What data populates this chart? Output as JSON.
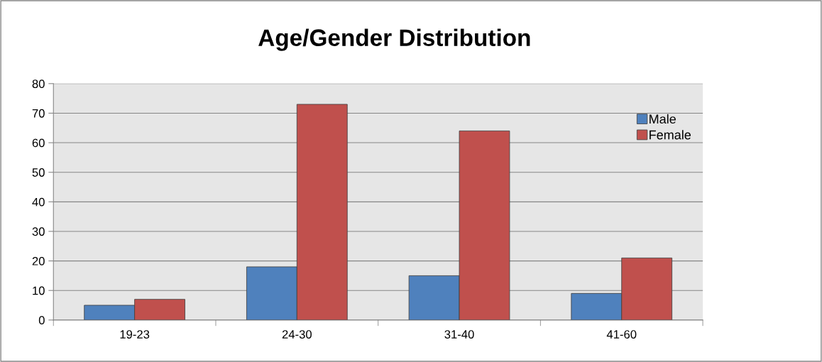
{
  "chart_data": {
    "type": "bar",
    "title": "Age/Gender Distribution",
    "categories": [
      "19-23",
      "24-30",
      "31-40",
      "41-60"
    ],
    "series": [
      {
        "name": "Male",
        "color": "#4f81bd",
        "values": [
          5,
          18,
          15,
          9
        ]
      },
      {
        "name": "Female",
        "color": "#c0504d",
        "values": [
          7,
          73,
          64,
          21
        ]
      }
    ],
    "ylim": [
      0,
      80
    ],
    "yticks": [
      0,
      10,
      20,
      30,
      40,
      50,
      60,
      70,
      80
    ],
    "grid": "y",
    "legend": "top right"
  }
}
